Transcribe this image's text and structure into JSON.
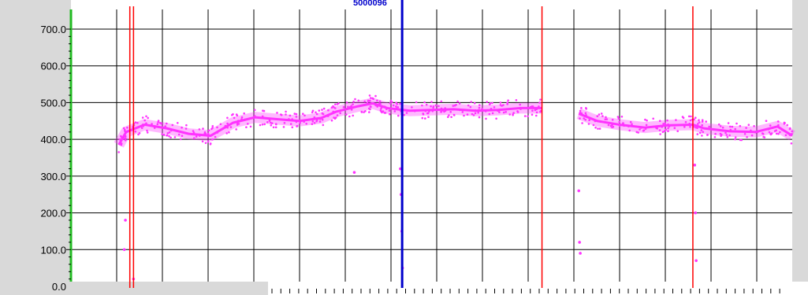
{
  "colors": {
    "panel_bg": "#d9d9d9",
    "plot_bg": "#ffffff",
    "grid": "#000000",
    "y_axis_line": "#22bb22",
    "trace": "#ff33ff",
    "marker_red": "#ff0000",
    "marker_blue": "#0000cc"
  },
  "cursor": {
    "label": "5000096"
  },
  "chart_data": {
    "type": "scatter",
    "title": "",
    "xlabel": "",
    "ylabel": "",
    "ylim": [
      0,
      700
    ],
    "xlim": [
      0,
      19.6
    ],
    "yticks": [
      0,
      100,
      200,
      300,
      400,
      500,
      600,
      700
    ],
    "ytick_labels": [
      "0.0",
      "100.0",
      "200.0",
      "300.0",
      "400.0",
      "500.0",
      "600.0",
      "700.0"
    ],
    "grid": true,
    "legend": "none",
    "series": [
      {
        "color": "#ff33ff",
        "segments": [
          {
            "x": [
              1.3,
              1.5,
              2.0,
              2.6,
              3.2,
              3.8,
              4.4,
              5.0,
              5.6,
              6.2,
              6.8,
              7.2,
              7.8,
              8.2,
              8.6,
              9.2,
              9.8,
              10.4,
              11.0,
              11.6,
              12.2,
              12.8
            ],
            "y": [
              385,
              420,
              440,
              430,
              415,
              410,
              445,
              460,
              455,
              450,
              458,
              475,
              490,
              498,
              485,
              478,
              480,
              482,
              478,
              480,
              485,
              485
            ]
          },
          {
            "x": [
              13.8,
              14.3,
              14.9,
              15.6,
              16.2,
              16.9,
              17.2,
              17.9,
              18.6,
              19.2,
              19.6
            ],
            "y": [
              470,
              450,
              440,
              432,
              438,
              440,
              430,
              422,
              420,
              435,
              410
            ]
          }
        ],
        "outliers": [
          {
            "x": 1.45,
            "y": 100
          },
          {
            "x": 1.48,
            "y": 180
          },
          {
            "x": 1.7,
            "y": 20
          },
          {
            "x": 7.7,
            "y": 310
          },
          {
            "x": 8.95,
            "y": 320
          },
          {
            "x": 8.97,
            "y": 250
          },
          {
            "x": 8.99,
            "y": 150
          },
          {
            "x": 9.01,
            "y": 50
          },
          {
            "x": 13.8,
            "y": 260
          },
          {
            "x": 13.82,
            "y": 120
          },
          {
            "x": 13.84,
            "y": 90
          },
          {
            "x": 16.95,
            "y": 330
          },
          {
            "x": 16.97,
            "y": 200
          },
          {
            "x": 16.99,
            "y": 70
          }
        ]
      }
    ],
    "vertical_markers": [
      {
        "x": 1.6,
        "color": "#ff0000"
      },
      {
        "x": 1.7,
        "color": "#ff0000"
      },
      {
        "x": 9.0,
        "color": "#0000cc"
      },
      {
        "x": 12.8,
        "color": "#ff0000"
      },
      {
        "x": 16.9,
        "color": "#ff0000"
      }
    ]
  }
}
